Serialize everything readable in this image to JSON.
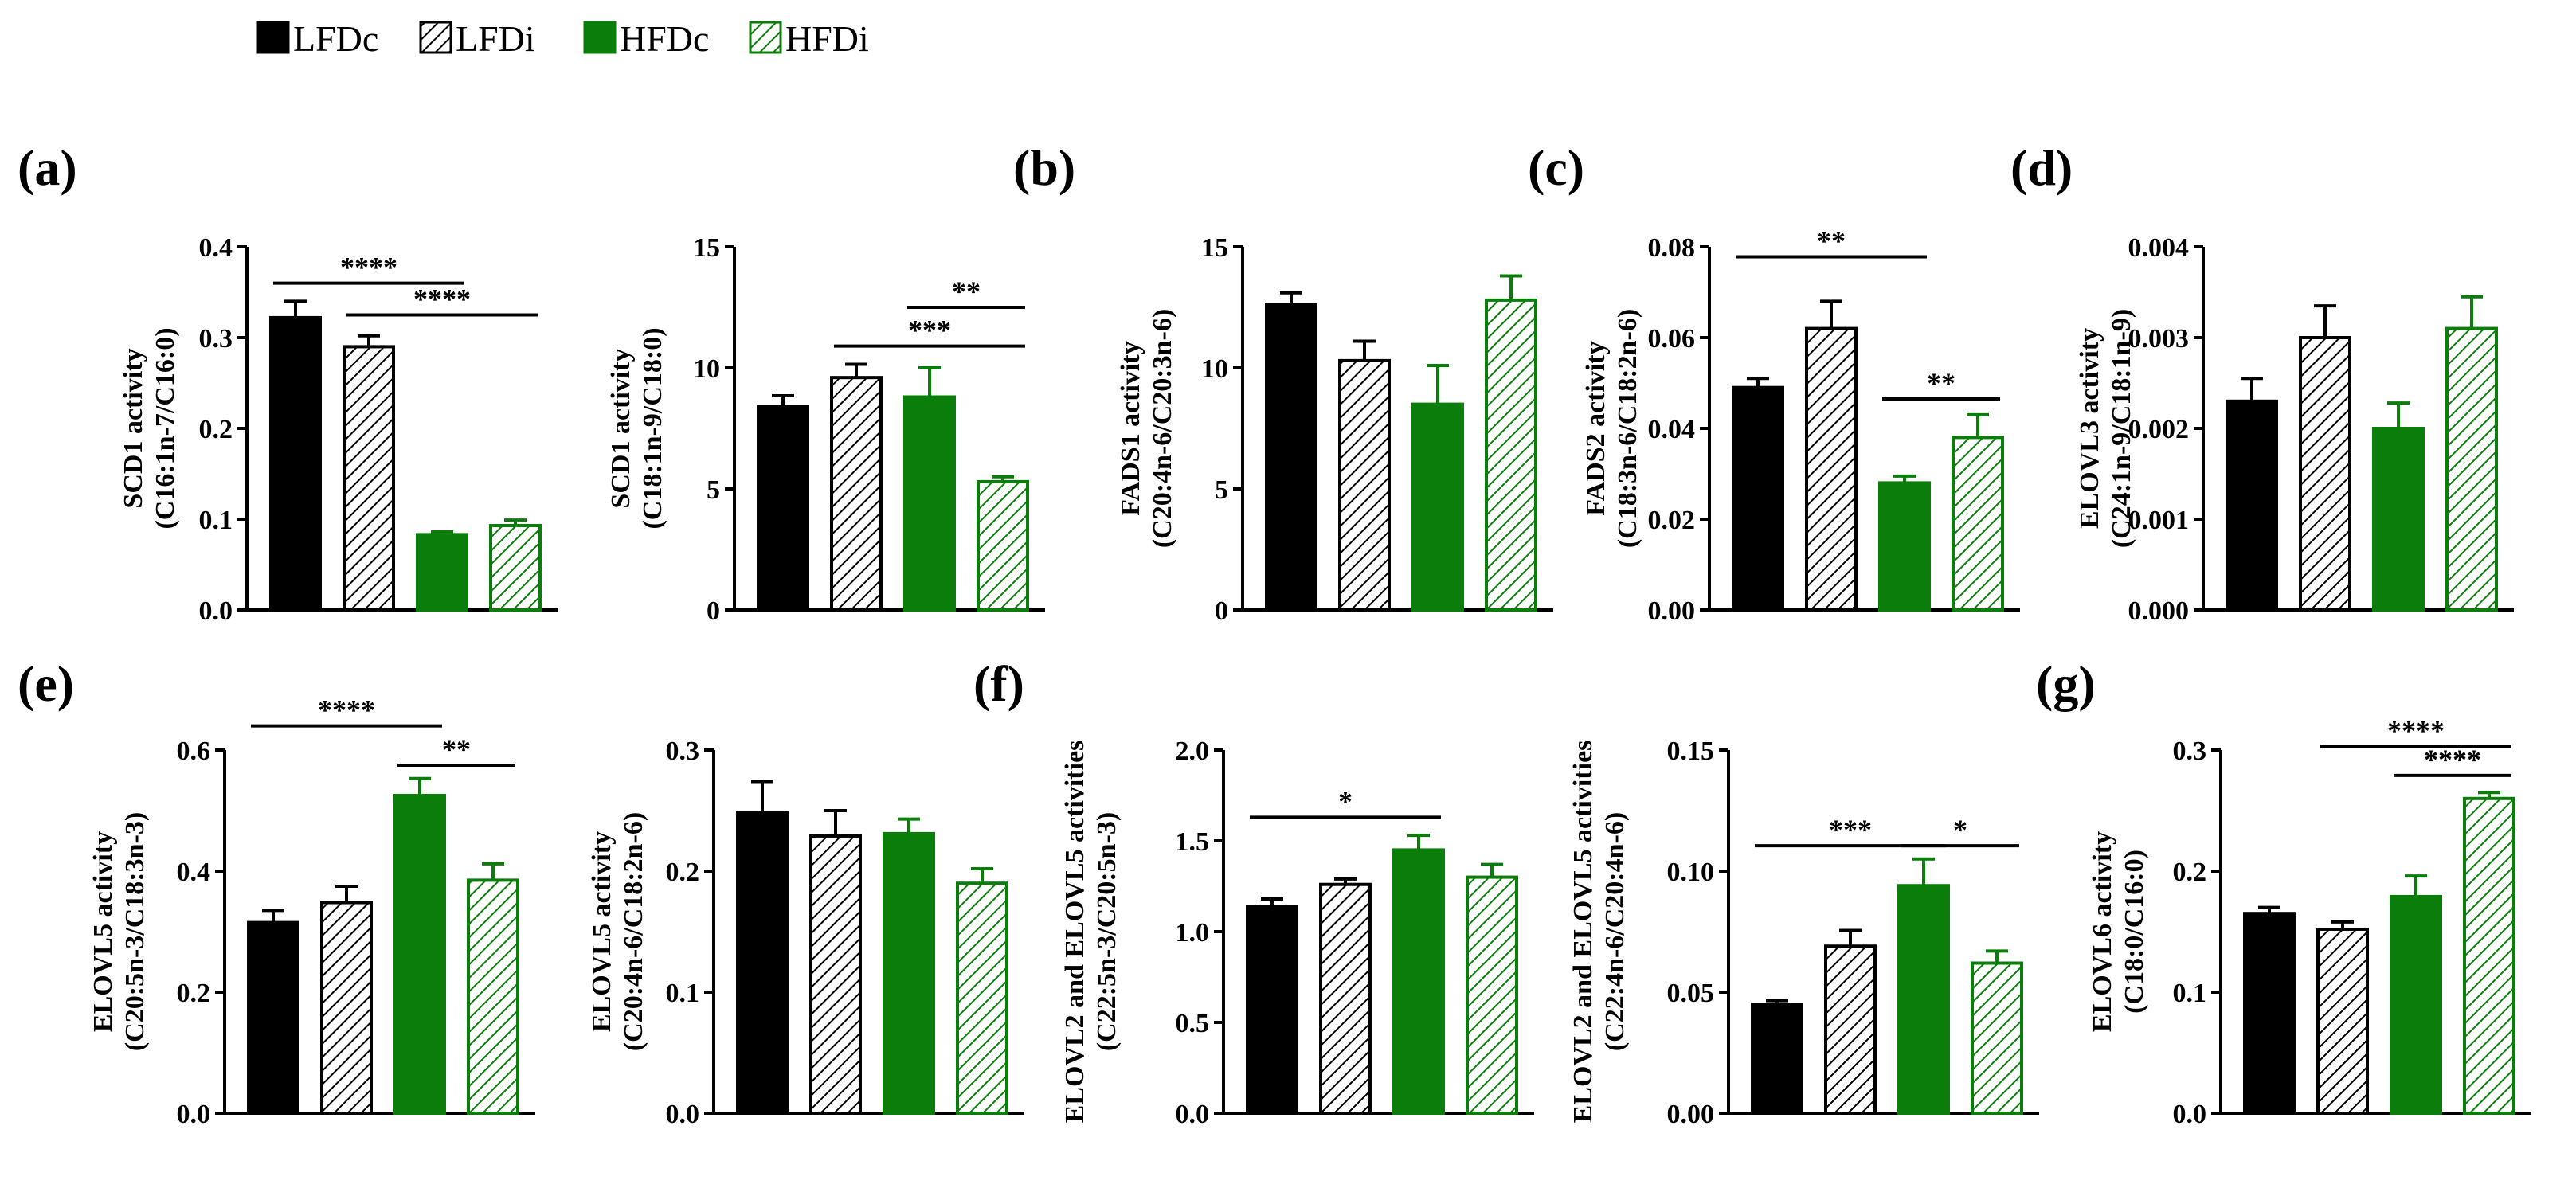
{
  "legend": [
    {
      "label": "LFDc",
      "color": "#000000",
      "pattern": "solid"
    },
    {
      "label": "LFDi",
      "color": "#000000",
      "pattern": "hatched"
    },
    {
      "label": "HFDc",
      "color": "#0a7d0a",
      "pattern": "solid"
    },
    {
      "label": "HFDi",
      "color": "#0a7d0a",
      "pattern": "hatched"
    }
  ],
  "colors": {
    "black": "#000000",
    "green": "#0a7d0a"
  },
  "panel_letters": [
    "(a)",
    "(b)",
    "(c)",
    "(d)",
    "(e)",
    "(f)",
    "(g)"
  ],
  "chart_data": [
    {
      "type": "bar",
      "ylabel": [
        "SCD1 activity",
        "(C16:1n-7/C16:0)"
      ],
      "categories": [
        "LFDc",
        "LFDi",
        "HFDc",
        "HFDi"
      ],
      "values": [
        0.322,
        0.29,
        0.083,
        0.093
      ],
      "errors": [
        0.018,
        0.012,
        0.003,
        0.006
      ],
      "ylim": [
        0,
        0.4
      ],
      "ticks": [
        "0.0",
        "0.1",
        "0.2",
        "0.3",
        "0.4"
      ],
      "brackets": [
        {
          "from": 0,
          "to": 2,
          "label": "****",
          "y": 0.36
        },
        {
          "from": 1,
          "to": 3,
          "label": "****",
          "y": 0.325
        }
      ]
    },
    {
      "type": "bar",
      "ylabel": [
        "SCD1 activity",
        "(C18:1n-9/C18:0)"
      ],
      "categories": [
        "LFDc",
        "LFDi",
        "HFDc",
        "HFDi"
      ],
      "values": [
        8.4,
        9.6,
        8.8,
        5.3
      ],
      "errors": [
        0.45,
        0.55,
        1.2,
        0.2
      ],
      "ylim": [
        0,
        15
      ],
      "ticks": [
        "0",
        "5",
        "10",
        "15"
      ],
      "brackets": [
        {
          "from": 1,
          "to": 3,
          "label": "***",
          "y": 10.9
        },
        {
          "from": 2,
          "to": 3,
          "label": "**",
          "y": 12.5
        }
      ]
    },
    {
      "type": "bar",
      "ylabel": [
        "FADS1 activity",
        "(C20:4n-6/C20:3n-6)"
      ],
      "categories": [
        "LFDc",
        "LFDi",
        "HFDc",
        "HFDi"
      ],
      "values": [
        12.6,
        10.3,
        8.5,
        12.8
      ],
      "errors": [
        0.5,
        0.8,
        1.6,
        1.0
      ],
      "ylim": [
        0,
        15
      ],
      "ticks": [
        "0",
        "5",
        "10",
        "15"
      ],
      "brackets": []
    },
    {
      "type": "bar",
      "ylabel": [
        "FADS2 activity",
        "(C18:3n-6/C18:2n-6)"
      ],
      "categories": [
        "LFDc",
        "LFDi",
        "HFDc",
        "HFDi"
      ],
      "values": [
        0.049,
        0.062,
        0.028,
        0.038
      ],
      "errors": [
        0.002,
        0.006,
        0.0015,
        0.005
      ],
      "ylim": [
        0,
        0.08
      ],
      "ticks": [
        "0.00",
        "0.02",
        "0.04",
        "0.06",
        "0.08"
      ],
      "brackets": [
        {
          "from": 0,
          "to": 2,
          "label": "**",
          "y": 0.0778
        },
        {
          "from": 2,
          "to": 3,
          "label": "**",
          "y": 0.0465
        }
      ]
    },
    {
      "type": "bar",
      "ylabel": [
        "ELOVL3 activity",
        "(C24:1n-9/C18:1n-9)"
      ],
      "categories": [
        "LFDc",
        "LFDi",
        "HFDc",
        "HFDi"
      ],
      "values": [
        0.0023,
        0.003,
        0.002,
        0.0031
      ],
      "errors": [
        0.00025,
        0.00035,
        0.00028,
        0.00035
      ],
      "ylim": [
        0,
        0.004
      ],
      "ticks": [
        "0.000",
        "0.001",
        "0.002",
        "0.003",
        "0.004"
      ],
      "brackets": []
    },
    {
      "type": "bar",
      "ylabel": [
        "ELOVL5 activity",
        "(C20:5n-3/C18:3n-3)"
      ],
      "categories": [
        "LFDc",
        "LFDi",
        "HFDc",
        "HFDi"
      ],
      "values": [
        0.315,
        0.348,
        0.525,
        0.385
      ],
      "errors": [
        0.02,
        0.027,
        0.028,
        0.027
      ],
      "ylim": [
        0,
        0.6
      ],
      "ticks": [
        "0.0",
        "0.2",
        "0.4",
        "0.6"
      ],
      "brackets": [
        {
          "from": 0,
          "to": 2,
          "label": "****",
          "y": 0.64
        },
        {
          "from": 2,
          "to": 3,
          "label": "**",
          "y": 0.575
        }
      ]
    },
    {
      "type": "bar",
      "ylabel": [
        "ELOVL5 activity",
        "(C20:4n-6/C18:2n-6)"
      ],
      "categories": [
        "LFDc",
        "LFDi",
        "HFDc",
        "HFDi"
      ],
      "values": [
        0.248,
        0.229,
        0.231,
        0.19
      ],
      "errors": [
        0.026,
        0.021,
        0.012,
        0.012
      ],
      "ylim": [
        0,
        0.3
      ],
      "ticks": [
        "0.0",
        "0.1",
        "0.2",
        "0.3"
      ],
      "brackets": []
    },
    {
      "type": "bar",
      "ylabel": [
        "ELOVL2 and ELOVL5 activities",
        "(C22:5n-3/C20:5n-3)"
      ],
      "categories": [
        "LFDc",
        "LFDi",
        "HFDc",
        "HFDi"
      ],
      "values": [
        1.14,
        1.26,
        1.45,
        1.3
      ],
      "errors": [
        0.04,
        0.03,
        0.08,
        0.07
      ],
      "ylim": [
        0,
        2.0
      ],
      "ticks": [
        "0.0",
        "0.5",
        "1.0",
        "1.5",
        "2.0"
      ],
      "brackets": [
        {
          "from": 0,
          "to": 2,
          "label": "*",
          "y": 1.63
        }
      ]
    },
    {
      "type": "bar",
      "ylabel": [
        "ELOVL2 and ELOVL5 activities",
        "(C22:4n-6/C20:4n-6)"
      ],
      "categories": [
        "LFDc",
        "LFDi",
        "HFDc",
        "HFDi"
      ],
      "values": [
        0.045,
        0.069,
        0.094,
        0.062
      ],
      "errors": [
        0.0015,
        0.0065,
        0.011,
        0.005
      ],
      "ylim": [
        0,
        0.15
      ],
      "ticks": [
        "0.00",
        "0.05",
        "0.10",
        "0.15"
      ],
      "brackets": [
        {
          "from": 0,
          "to": 2,
          "label": "***",
          "y": 0.1105
        },
        {
          "from": 2,
          "to": 3,
          "label": "*",
          "y": 0.1105
        }
      ]
    },
    {
      "type": "bar",
      "ylabel": [
        "ELOVL6 activity",
        "(C18:0/C16:0)"
      ],
      "categories": [
        "LFDc",
        "LFDi",
        "HFDc",
        "HFDi"
      ],
      "values": [
        0.165,
        0.152,
        0.179,
        0.26
      ],
      "errors": [
        0.005,
        0.006,
        0.017,
        0.005
      ],
      "ylim": [
        0,
        0.3
      ],
      "ticks": [
        "0.0",
        "0.1",
        "0.2",
        "0.3"
      ],
      "brackets": [
        {
          "from": 1,
          "to": 3,
          "label": "****",
          "y": 0.303
        },
        {
          "from": 2,
          "to": 3,
          "label": "****",
          "y": 0.279
        }
      ]
    }
  ]
}
